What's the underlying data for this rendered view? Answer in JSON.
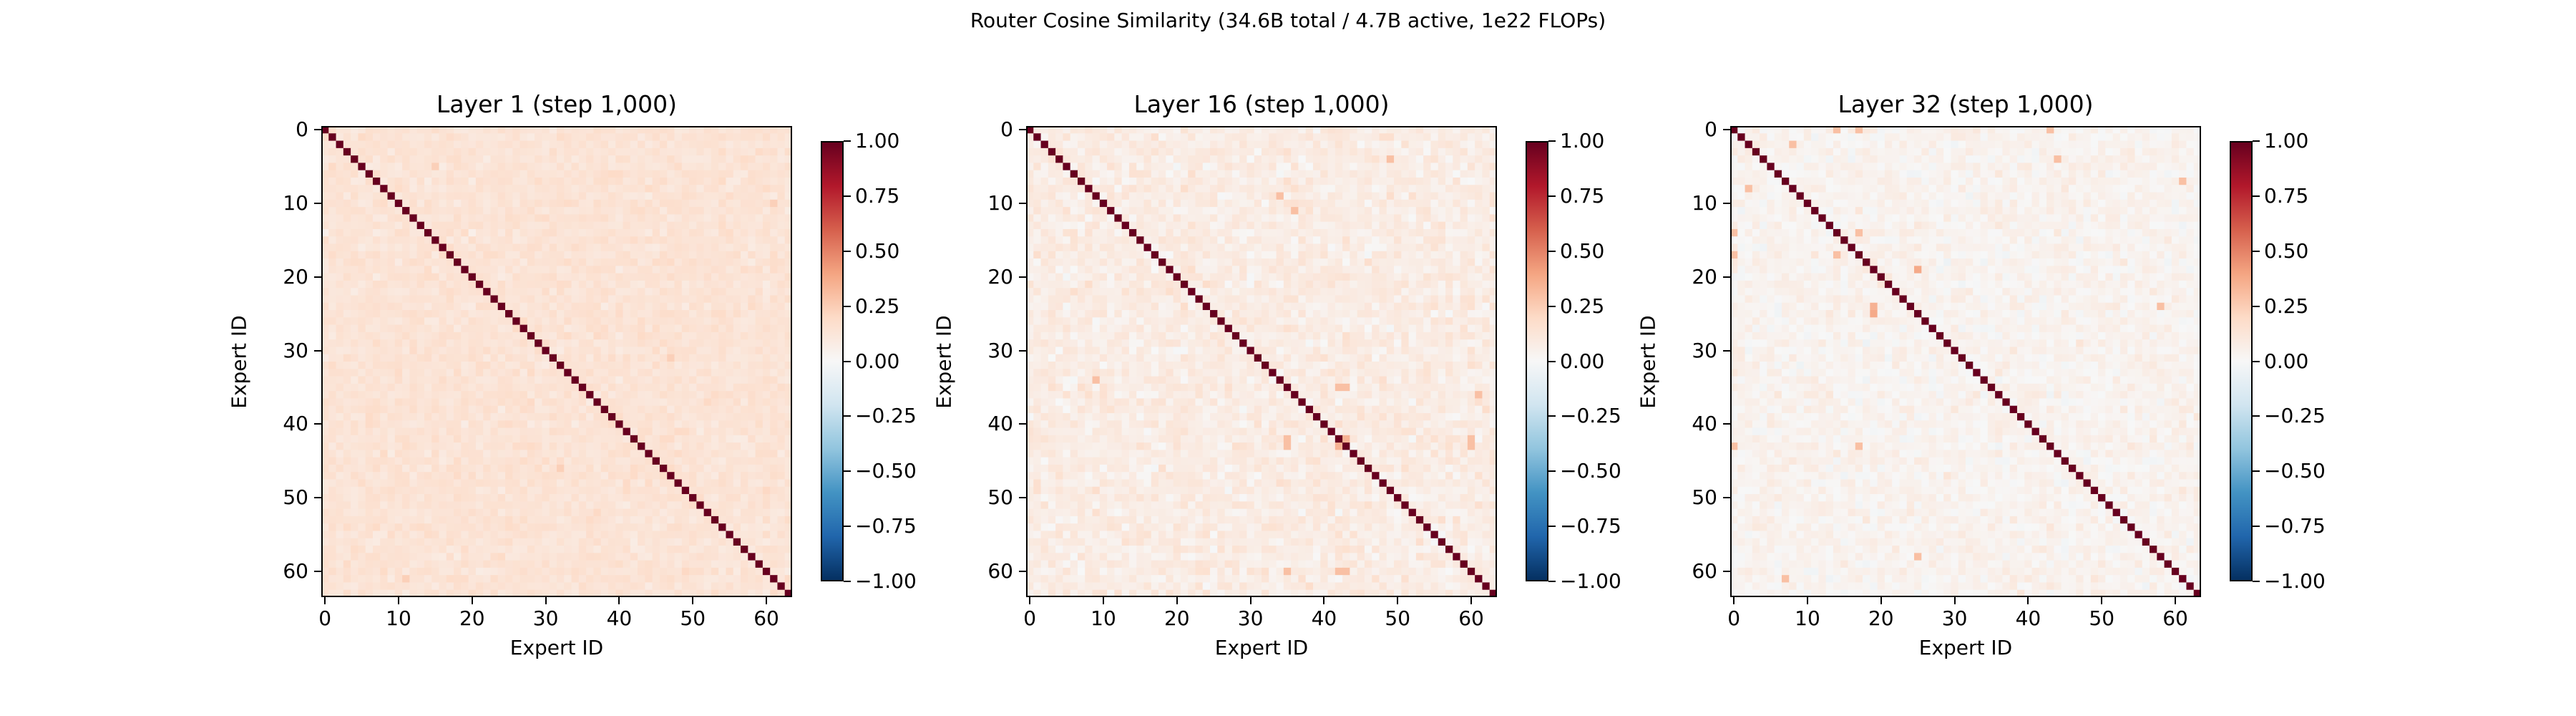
{
  "figure": {
    "suptitle": "Router Cosine Similarity (34.6B total / 4.7B active, 1e22 FLOPs)"
  },
  "chart_data": [
    {
      "type": "heatmap",
      "title": "Layer 1 (step 1,000)",
      "xlabel": "Expert ID",
      "ylabel": "Expert ID",
      "n_experts": 64,
      "xticks": [
        0,
        10,
        20,
        30,
        40,
        50,
        60
      ],
      "yticks": [
        0,
        10,
        20,
        30,
        40,
        50,
        60
      ],
      "colormap": "RdBu_r",
      "vmin": -1.0,
      "vmax": 1.0,
      "colorbar_ticks": [
        "1.00",
        "0.75",
        "0.50",
        "0.25",
        "0.00",
        "−0.25",
        "−0.50",
        "−0.75",
        "−1.00"
      ],
      "diagonal_value": 1.0,
      "offdiag_mean": 0.14,
      "offdiag_spread": 0.045,
      "seed": 11,
      "notable_cells": [
        {
          "row": 5,
          "col": 15,
          "value": 0.24
        },
        {
          "row": 14,
          "col": 0,
          "value": 0.06
        },
        {
          "row": 14,
          "col": 20,
          "value": 0.06
        },
        {
          "row": 31,
          "col": 47,
          "value": 0.24
        },
        {
          "row": 46,
          "col": 32,
          "value": 0.24
        },
        {
          "row": 61,
          "col": 11,
          "value": 0.24
        },
        {
          "row": 10,
          "col": 61,
          "value": 0.24
        }
      ]
    },
    {
      "type": "heatmap",
      "title": "Layer 16 (step 1,000)",
      "xlabel": "Expert ID",
      "ylabel": "Expert ID",
      "n_experts": 64,
      "xticks": [
        0,
        10,
        20,
        30,
        40,
        50,
        60
      ],
      "yticks": [
        0,
        10,
        20,
        30,
        40,
        50,
        60
      ],
      "colormap": "RdBu_r",
      "vmin": -1.0,
      "vmax": 1.0,
      "colorbar_ticks": [
        "1.00",
        "0.75",
        "0.50",
        "0.25",
        "0.00",
        "−0.25",
        "−0.50",
        "−0.75",
        "−1.00"
      ],
      "diagonal_value": 1.0,
      "offdiag_mean": 0.08,
      "offdiag_spread": 0.07,
      "seed": 16,
      "notable_cells": [
        {
          "row": 42,
          "col": 43,
          "value": 0.35
        },
        {
          "row": 43,
          "col": 42,
          "value": 0.35
        },
        {
          "row": 35,
          "col": 42,
          "value": 0.3
        },
        {
          "row": 35,
          "col": 43,
          "value": 0.3
        },
        {
          "row": 42,
          "col": 35,
          "value": 0.3
        },
        {
          "row": 43,
          "col": 35,
          "value": 0.3
        },
        {
          "row": 9,
          "col": 34,
          "value": 0.3
        },
        {
          "row": 11,
          "col": 36,
          "value": 0.3
        },
        {
          "row": 4,
          "col": 49,
          "value": 0.3
        },
        {
          "row": 34,
          "col": 9,
          "value": 0.3
        },
        {
          "row": 36,
          "col": 61,
          "value": 0.3
        },
        {
          "row": 42,
          "col": 60,
          "value": 0.3
        },
        {
          "row": 43,
          "col": 60,
          "value": 0.3
        },
        {
          "row": 60,
          "col": 42,
          "value": 0.3
        },
        {
          "row": 60,
          "col": 43,
          "value": 0.3
        },
        {
          "row": 60,
          "col": 35,
          "value": 0.3
        }
      ]
    },
    {
      "type": "heatmap",
      "title": "Layer 32 (step 1,000)",
      "xlabel": "Expert ID",
      "ylabel": "Expert ID",
      "n_experts": 64,
      "xticks": [
        0,
        10,
        20,
        30,
        40,
        50,
        60
      ],
      "yticks": [
        0,
        10,
        20,
        30,
        40,
        50,
        60
      ],
      "colormap": "RdBu_r",
      "vmin": -1.0,
      "vmax": 1.0,
      "colorbar_ticks": [
        "1.00",
        "0.75",
        "0.50",
        "0.25",
        "0.00",
        "−0.25",
        "−0.50",
        "−0.75",
        "−1.00"
      ],
      "diagonal_value": 1.0,
      "offdiag_mean": 0.035,
      "offdiag_spread": 0.06,
      "seed": 32,
      "notable_cells": [
        {
          "row": 0,
          "col": 14,
          "value": 0.3
        },
        {
          "row": 0,
          "col": 17,
          "value": 0.3
        },
        {
          "row": 0,
          "col": 43,
          "value": 0.3
        },
        {
          "row": 2,
          "col": 8,
          "value": 0.3
        },
        {
          "row": 8,
          "col": 2,
          "value": 0.3
        },
        {
          "row": 4,
          "col": 44,
          "value": 0.3
        },
        {
          "row": 7,
          "col": 61,
          "value": 0.3
        },
        {
          "row": 14,
          "col": 0,
          "value": 0.3
        },
        {
          "row": 14,
          "col": 17,
          "value": 0.3
        },
        {
          "row": 17,
          "col": 0,
          "value": 0.3
        },
        {
          "row": 17,
          "col": 14,
          "value": 0.3
        },
        {
          "row": 19,
          "col": 25,
          "value": 0.38
        },
        {
          "row": 25,
          "col": 19,
          "value": 0.38
        },
        {
          "row": 24,
          "col": 19,
          "value": 0.35
        },
        {
          "row": 24,
          "col": 58,
          "value": 0.3
        },
        {
          "row": 43,
          "col": 0,
          "value": 0.3
        },
        {
          "row": 43,
          "col": 17,
          "value": 0.3
        },
        {
          "row": 58,
          "col": 25,
          "value": 0.3
        },
        {
          "row": 61,
          "col": 7,
          "value": 0.3
        }
      ]
    }
  ]
}
